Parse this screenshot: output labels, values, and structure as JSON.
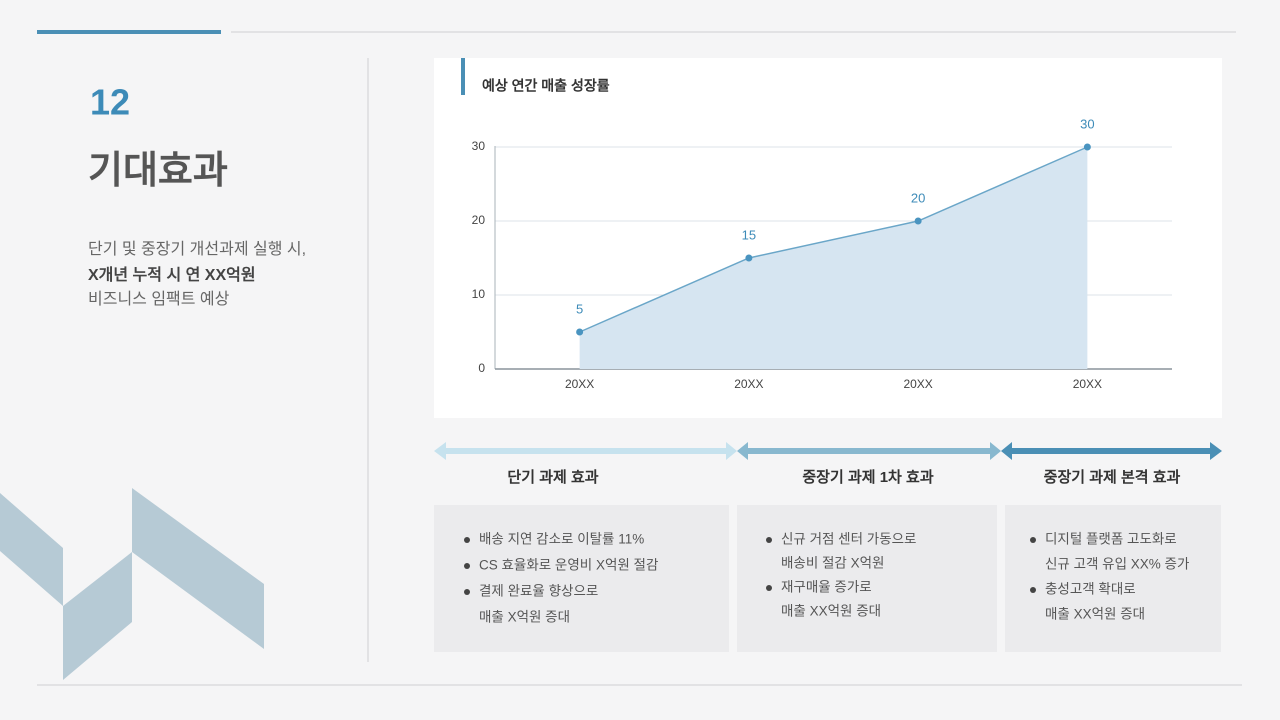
{
  "slide": {
    "number": "12",
    "title": "기대효과",
    "description": [
      "단기 및 중장기 개선과제 실행 시,",
      "X개년 누적 시 연 XX억원",
      "비즈니스 임팩트 예상"
    ]
  },
  "chart_data": {
    "type": "area",
    "title": "예상 연간 매출 성장률",
    "categories": [
      "20XX",
      "20XX",
      "20XX",
      "20XX"
    ],
    "values": [
      5,
      15,
      20,
      30
    ],
    "color": "#6aa6c8",
    "fill": "#d6e5f1",
    "ylim": [
      0,
      30
    ],
    "yticks": [
      0,
      10,
      20,
      30
    ],
    "grid": true
  },
  "phases": [
    {
      "title": "단기 과제 효과",
      "items": [
        [
          "배송 지연 감소로 이탈률 11%"
        ],
        [
          "CS 효율화로 운영비 X억원 절감"
        ],
        [
          "결제 완료율 향상으로",
          "매출 X억원 증대"
        ]
      ]
    },
    {
      "title": "중장기 과제 1차 효과",
      "items": [
        [
          "신규 거점 센터 가동으로",
          "배송비 절감 X억원"
        ],
        [
          "재구매율 증가로",
          "매출 XX억원 증대"
        ]
      ]
    },
    {
      "title": "중장기 과제 본격 효과",
      "items": [
        [
          "디지털 플랫폼 고도화로",
          "신규 고객 유입 XX% 증가"
        ],
        [
          "충성고객 확대로",
          "매출 XX억원 증대"
        ]
      ]
    }
  ]
}
